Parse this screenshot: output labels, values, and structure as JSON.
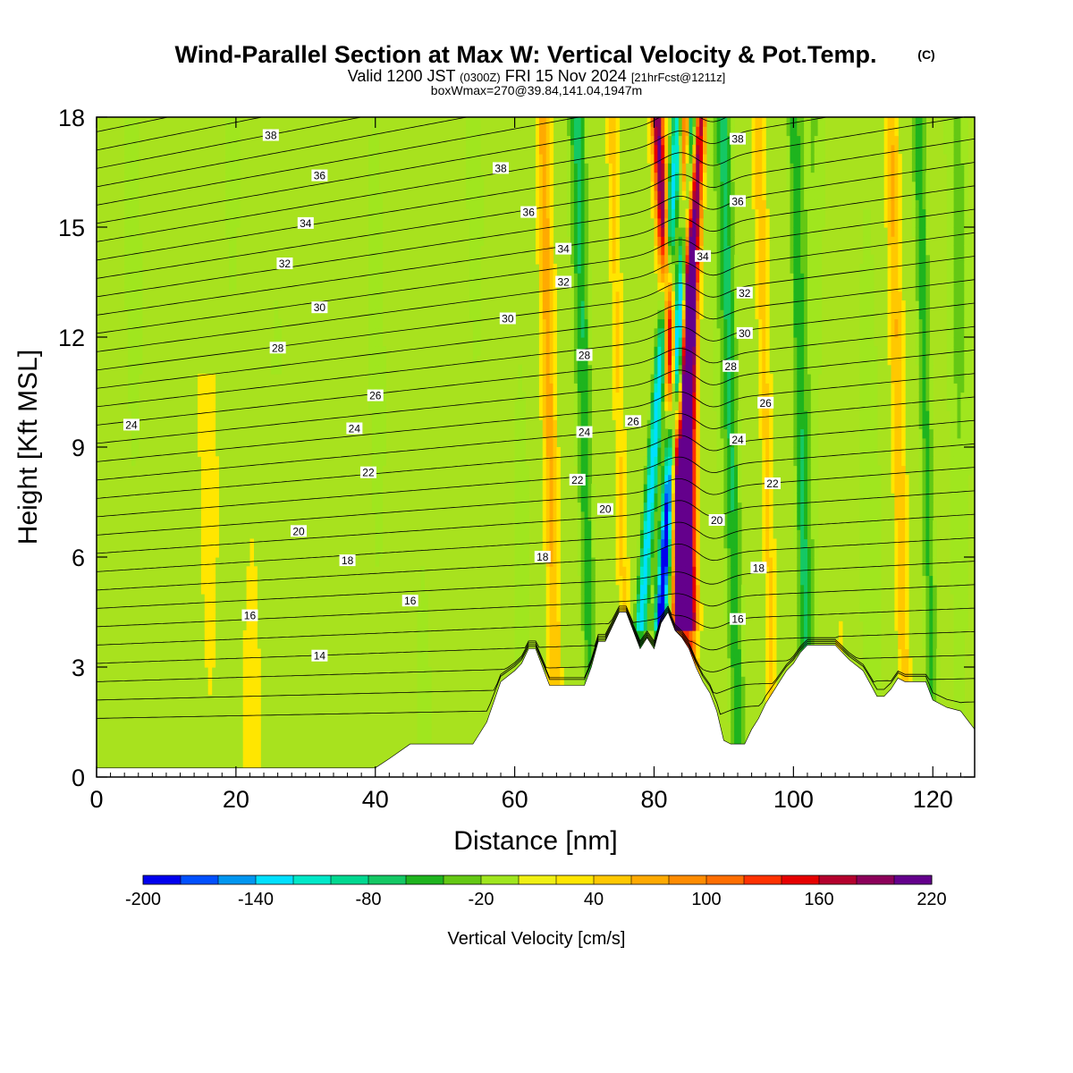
{
  "header": {
    "title": "Wind-Parallel Section at Max W: Vertical Velocity & Pot.Temp.",
    "copyright": "(C)",
    "valid_prefix": "Valid 1200 JST",
    "valid_zulu": "(0300Z)",
    "valid_date": "FRI 15 Nov 2024",
    "forecast": "[21hrFcst@1211z]",
    "boxline": "boxWmax=270@39.84,141.04,1947m"
  },
  "colorbar": {
    "title": "Vertical Velocity [cm/s]",
    "levels": [
      -200,
      -180,
      -160,
      -140,
      -120,
      -100,
      -80,
      -60,
      -40,
      -20,
      0,
      20,
      40,
      60,
      80,
      100,
      120,
      140,
      160,
      180,
      200,
      220
    ],
    "tick_labels": [
      "-200",
      "-140",
      "-80",
      "-20",
      "40",
      "100",
      "160",
      "220"
    ],
    "colors": [
      "#0000ee",
      "#0050ff",
      "#0096f0",
      "#00e0ff",
      "#00e8c8",
      "#00d890",
      "#14c864",
      "#1eb41e",
      "#64c814",
      "#a0e61e",
      "#f0f014",
      "#ffe600",
      "#ffc800",
      "#ffaa00",
      "#ff8c00",
      "#ff6e00",
      "#ff3200",
      "#e60000",
      "#b4002d",
      "#8c005a",
      "#64008c"
    ]
  },
  "chart_data": {
    "type": "heatmap",
    "title": "Wind-Parallel Section at Max W: Vertical Velocity & Pot.Temp.",
    "xlabel": "Distance [nm]",
    "ylabel": "Height [Kft MSL]",
    "xlim": [
      0,
      126
    ],
    "ylim": [
      0,
      18
    ],
    "x_ticks": [
      0,
      20,
      40,
      60,
      80,
      100,
      120
    ],
    "y_ticks": [
      0,
      3,
      6,
      9,
      12,
      15,
      18
    ],
    "x_tick_labels": [
      "0",
      "20",
      "40",
      "60",
      "80",
      "100",
      "120"
    ],
    "y_tick_labels": [
      "0",
      "3",
      "6",
      "9",
      "12",
      "15",
      "18"
    ],
    "shading_variable": "Vertical Velocity [cm/s]",
    "contour_variable": "Potential temperature",
    "terrain_profile_kft": {
      "x": [
        0,
        40,
        42,
        45,
        48,
        54,
        56,
        58,
        60,
        61,
        62,
        63,
        64,
        65,
        66,
        67,
        68,
        69,
        70,
        71,
        72,
        73,
        74,
        75,
        76,
        77,
        78,
        79,
        80,
        81,
        82,
        83,
        84,
        85,
        86,
        87,
        88,
        89,
        90,
        91,
        92,
        93,
        94,
        95,
        96,
        97,
        98,
        99,
        100,
        101,
        102,
        103,
        104,
        106,
        108,
        110,
        112,
        113,
        114,
        115,
        116,
        117,
        118,
        119,
        120,
        122,
        124,
        126
      ],
      "height": [
        0.25,
        0.25,
        0.5,
        0.9,
        0.9,
        0.9,
        1.5,
        2.6,
        2.9,
        3.1,
        3.5,
        3.5,
        3.0,
        2.5,
        2.5,
        2.5,
        2.5,
        2.5,
        2.5,
        3.0,
        3.7,
        3.7,
        4.1,
        4.5,
        4.5,
        4.0,
        3.5,
        3.8,
        3.5,
        4.2,
        4.5,
        4.0,
        3.8,
        3.5,
        3.0,
        2.6,
        2.3,
        1.8,
        1.0,
        0.9,
        0.9,
        0.9,
        1.3,
        1.6,
        2.0,
        2.3,
        2.6,
        2.9,
        3.1,
        3.4,
        3.6,
        3.6,
        3.6,
        3.6,
        3.2,
        2.9,
        2.2,
        2.2,
        2.4,
        2.7,
        2.6,
        2.6,
        2.6,
        2.6,
        2.1,
        1.9,
        1.8,
        1.3
      ]
    },
    "updraft_bands": [
      {
        "top_x": 80.5,
        "bottom_x": 85.5,
        "peak_cm_s": 200
      },
      {
        "top_x": 86.5,
        "bottom_x": 82.5,
        "peak_cm_s": 200
      },
      {
        "top_x": 84.5,
        "bottom_x": 85.5,
        "peak_cm_s": 180
      }
    ],
    "downdraft_bands": [
      {
        "top_x": 85.5,
        "bottom_x": 79.5,
        "peak_cm_s": -200
      },
      {
        "top_x": 83.5,
        "bottom_x": 76.5,
        "peak_cm_s": -140
      }
    ],
    "theta_contour_labels": [
      {
        "value": "38",
        "x": 25,
        "y": 17.5
      },
      {
        "value": "36",
        "x": 32,
        "y": 16.4
      },
      {
        "value": "34",
        "x": 30,
        "y": 15.1
      },
      {
        "value": "32",
        "x": 27,
        "y": 14.0
      },
      {
        "value": "30",
        "x": 32,
        "y": 12.8
      },
      {
        "value": "28",
        "x": 26,
        "y": 11.7
      },
      {
        "value": "26",
        "x": 40,
        "y": 10.4
      },
      {
        "value": "24",
        "x": 5,
        "y": 9.6
      },
      {
        "value": "24",
        "x": 37,
        "y": 9.5
      },
      {
        "value": "22",
        "x": 39,
        "y": 8.3
      },
      {
        "value": "20",
        "x": 29,
        "y": 6.7
      },
      {
        "value": "18",
        "x": 36,
        "y": 5.9
      },
      {
        "value": "16",
        "x": 22,
        "y": 4.4
      },
      {
        "value": "16",
        "x": 45,
        "y": 4.8
      },
      {
        "value": "14",
        "x": 32,
        "y": 3.3
      },
      {
        "value": "38",
        "x": 58,
        "y": 16.6
      },
      {
        "value": "36",
        "x": 62,
        "y": 15.4
      },
      {
        "value": "34",
        "x": 67,
        "y": 14.4
      },
      {
        "value": "32",
        "x": 67,
        "y": 13.5
      },
      {
        "value": "30",
        "x": 59,
        "y": 12.5
      },
      {
        "value": "28",
        "x": 70,
        "y": 11.5
      },
      {
        "value": "26",
        "x": 77,
        "y": 9.7
      },
      {
        "value": "24",
        "x": 70,
        "y": 9.4
      },
      {
        "value": "22",
        "x": 69,
        "y": 8.1
      },
      {
        "value": "20",
        "x": 73,
        "y": 7.3
      },
      {
        "value": "18",
        "x": 64,
        "y": 6.0
      },
      {
        "value": "38",
        "x": 92,
        "y": 17.4
      },
      {
        "value": "36",
        "x": 92,
        "y": 15.7
      },
      {
        "value": "34",
        "x": 87,
        "y": 14.2
      },
      {
        "value": "32",
        "x": 93,
        "y": 13.2
      },
      {
        "value": "30",
        "x": 93,
        "y": 12.1
      },
      {
        "value": "28",
        "x": 91,
        "y": 11.2
      },
      {
        "value": "26",
        "x": 96,
        "y": 10.2
      },
      {
        "value": "24",
        "x": 92,
        "y": 9.2
      },
      {
        "value": "22",
        "x": 97,
        "y": 8.0
      },
      {
        "value": "20",
        "x": 89,
        "y": 7.0
      },
      {
        "value": "18",
        "x": 95,
        "y": 5.7
      },
      {
        "value": "16",
        "x": 92,
        "y": 4.3
      }
    ]
  }
}
